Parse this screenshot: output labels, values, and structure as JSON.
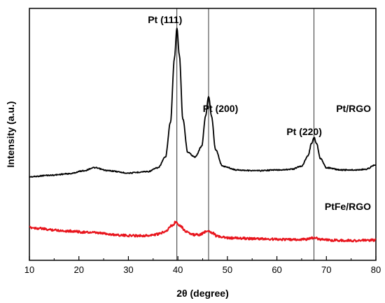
{
  "chart_data": {
    "type": "line",
    "xlabel": "2θ (degree)",
    "ylabel": "Intensity (a.u.)",
    "xlim": [
      10,
      80
    ],
    "xticks": [
      "10",
      "20",
      "30",
      "40",
      "50",
      "60",
      "70",
      "80"
    ],
    "y_ticks_shown": false,
    "grid": false,
    "reference_lines_x": [
      39.8,
      46.2,
      67.5
    ],
    "colors": {
      "Pt/RGO": "#000000",
      "PtFe/RGO": "#e8141c"
    },
    "peak_labels": [
      {
        "text": "Pt (111)",
        "x": 39.8
      },
      {
        "text": "Pt (200)",
        "x": 46.2
      },
      {
        "text": "Pt (220)",
        "x": 67.5
      }
    ],
    "series": [
      {
        "name": "Pt/RGO",
        "x": [
          10,
          14,
          18,
          21,
          23,
          26,
          30,
          34,
          36,
          37.5,
          38.5,
          39.3,
          39.8,
          40.3,
          41,
          42,
          43.5,
          44.8,
          45.6,
          46.2,
          46.8,
          47.6,
          49,
          52,
          56,
          60,
          63,
          65,
          66.3,
          67.0,
          67.5,
          68.0,
          68.8,
          70,
          73,
          76,
          78,
          80
        ],
        "y": [
          0.02,
          0.03,
          0.04,
          0.06,
          0.08,
          0.06,
          0.045,
          0.055,
          0.08,
          0.15,
          0.38,
          0.8,
          1.0,
          0.82,
          0.4,
          0.18,
          0.15,
          0.22,
          0.42,
          0.55,
          0.42,
          0.2,
          0.09,
          0.065,
          0.06,
          0.065,
          0.07,
          0.09,
          0.16,
          0.24,
          0.28,
          0.24,
          0.14,
          0.08,
          0.065,
          0.065,
          0.07,
          0.1
        ]
      },
      {
        "name": "PtFe/RGO",
        "x": [
          10,
          12,
          14,
          18,
          22,
          25,
          27,
          30,
          34,
          36,
          37.5,
          38.8,
          39.6,
          40.5,
          41.5,
          43,
          44.5,
          45.5,
          46.2,
          47,
          48,
          50,
          53,
          56,
          60,
          64,
          66,
          67.5,
          69,
          71,
          75,
          80
        ],
        "y": [
          0.2,
          0.19,
          0.175,
          0.16,
          0.145,
          0.135,
          0.12,
          0.11,
          0.11,
          0.125,
          0.16,
          0.22,
          0.26,
          0.22,
          0.16,
          0.12,
          0.12,
          0.15,
          0.165,
          0.14,
          0.1,
          0.085,
          0.08,
          0.075,
          0.07,
          0.065,
          0.07,
          0.085,
          0.07,
          0.06,
          0.055,
          0.06
        ]
      }
    ]
  }
}
